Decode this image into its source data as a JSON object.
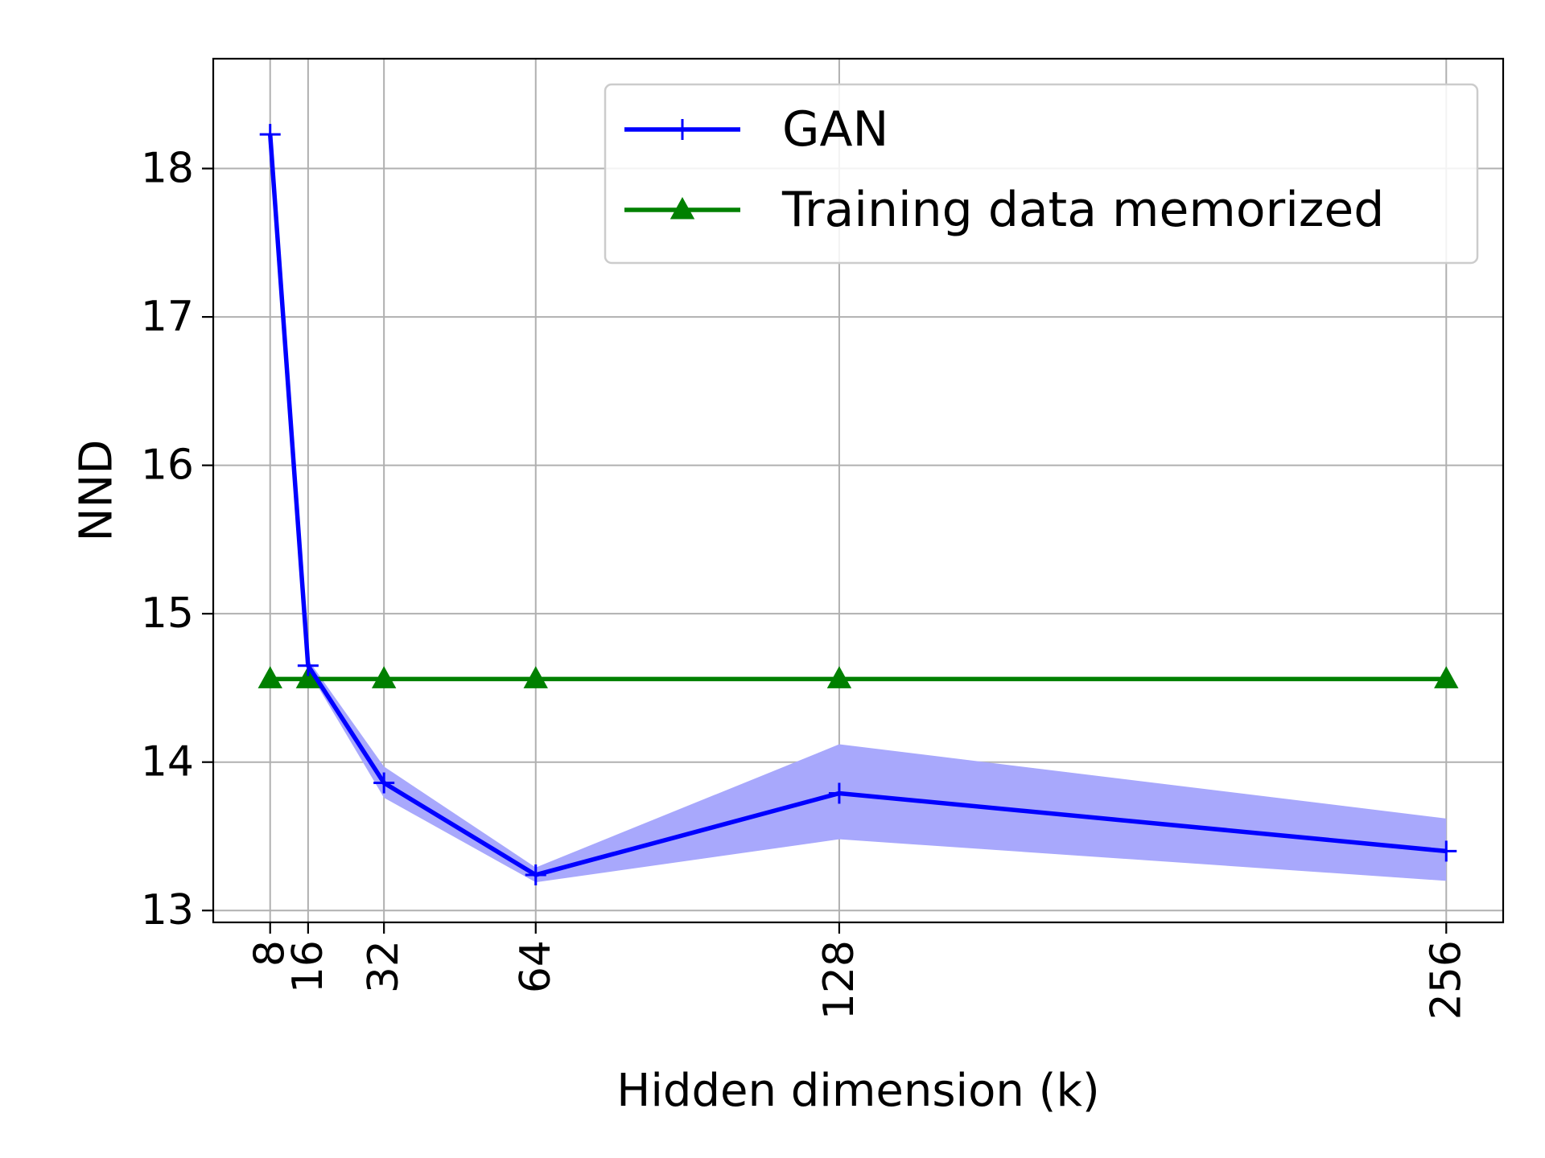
{
  "chart_data": {
    "type": "line",
    "xlabel": "Hidden dimension (k)",
    "ylabel": "NND",
    "x": [
      8,
      16,
      32,
      64,
      128,
      256
    ],
    "x_tick_labels": [
      "8",
      "16",
      "32",
      "64",
      "128",
      "256"
    ],
    "xlim": [
      -4,
      268
    ],
    "ylim": [
      12.92,
      18.74
    ],
    "y_ticks": [
      13,
      14,
      15,
      16,
      17,
      18
    ],
    "y_tick_labels": [
      "13",
      "14",
      "15",
      "16",
      "17",
      "18"
    ],
    "grid": true,
    "legend_position": "top-right",
    "series": [
      {
        "name": "GAN",
        "color": "#0000ff",
        "band_color": "#a8a8fc",
        "marker": "plus",
        "values": [
          18.23,
          14.65,
          13.86,
          13.24,
          13.79,
          13.4
        ],
        "band_lower": [
          18.23,
          14.62,
          13.76,
          13.19,
          13.48,
          13.2
        ],
        "band_upper": [
          18.23,
          14.69,
          13.97,
          13.29,
          14.12,
          13.62
        ]
      },
      {
        "name": "Training data memorized",
        "color": "#008000",
        "marker": "triangle",
        "values": [
          14.56,
          14.56,
          14.56,
          14.56,
          14.56,
          14.56
        ]
      }
    ]
  }
}
